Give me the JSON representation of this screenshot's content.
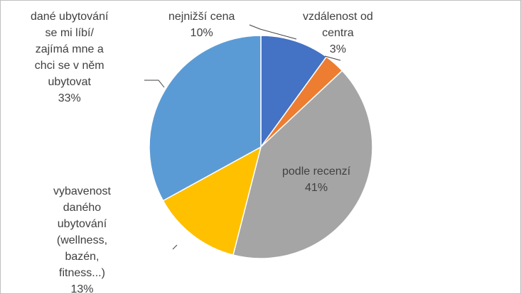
{
  "chart_data": {
    "type": "pie",
    "slices": [
      {
        "label_lines": [
          "nejnižší cena"
        ],
        "pct_label": "10%",
        "value": 10,
        "color": "#4472c4"
      },
      {
        "label_lines": [
          "vzdálenost od",
          "centra"
        ],
        "pct_label": "3%",
        "value": 3,
        "color": "#ed7d31"
      },
      {
        "label_lines": [
          "podle recenzí"
        ],
        "pct_label": "41%",
        "value": 41,
        "color": "#a5a5a5"
      },
      {
        "label_lines": [
          "vybavenost",
          "daného",
          "ubytování",
          "(wellness,",
          "bazén,",
          "fitness...)"
        ],
        "pct_label": "13%",
        "value": 13,
        "color": "#ffc000"
      },
      {
        "label_lines": [
          "dané ubytování",
          "se mi líbí/",
          "zajímá mne a",
          "chci se v něm",
          "ubytovat"
        ],
        "pct_label": "33%",
        "value": 33,
        "color": "#5b9bd5"
      }
    ]
  }
}
